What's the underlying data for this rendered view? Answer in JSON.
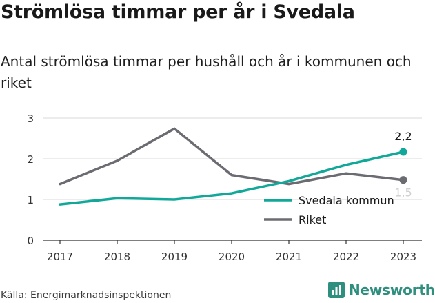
{
  "title": "Strömlösa timmar per år i Svedala",
  "subtitle": "Antal strömlösa timmar per hushåll och år i kommunen och riket",
  "source": "Källa: Energimarknadsinspektionen",
  "brand": "Newsworthy",
  "colors": {
    "svedala": "#11a89a",
    "riket": "#6b6b72",
    "brand": "#2f8f7f",
    "grid": "#d9d9d9"
  },
  "chart_data": {
    "type": "line",
    "x": [
      "2017",
      "2018",
      "2019",
      "2020",
      "2021",
      "2022",
      "2023"
    ],
    "yticks": [
      "0",
      "1",
      "2",
      "3"
    ],
    "ylim": [
      0,
      3
    ],
    "legend_position": "inside-bottom-right",
    "series": [
      {
        "name": "Svedala kommun",
        "values": [
          0.88,
          1.03,
          1.0,
          1.15,
          1.45,
          1.85,
          2.17
        ],
        "end_label": "2,2",
        "color": "#11a89a"
      },
      {
        "name": "Riket",
        "values": [
          1.38,
          1.95,
          2.74,
          1.6,
          1.38,
          1.64,
          1.48
        ],
        "end_label": "1,5",
        "color": "#6b6b72"
      }
    ]
  }
}
